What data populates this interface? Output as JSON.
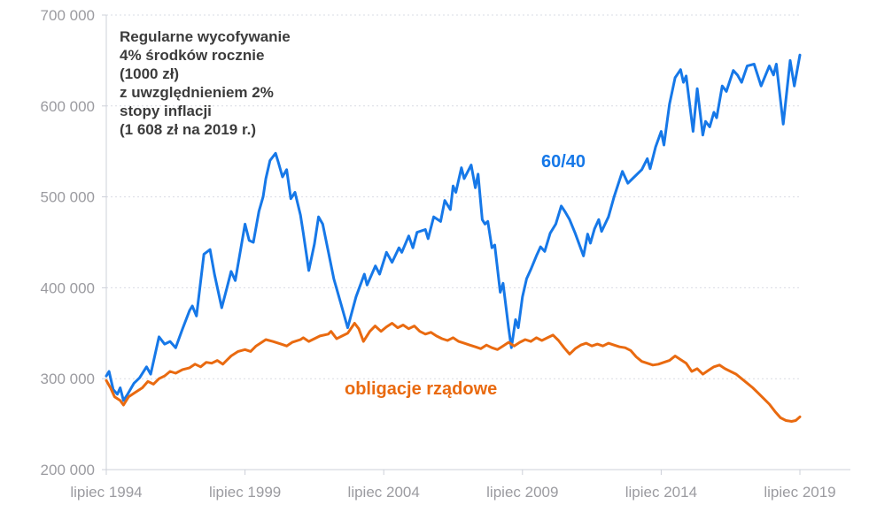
{
  "annotation": {
    "lines": [
      "Regularne wycofywanie",
      "4% środków rocznie",
      "(1000 zł)",
      "z uwzględnieniem 2%",
      "stopy inflacji",
      "(1 608 zł na 2019 r.)"
    ]
  },
  "series_labels": {
    "stocks_bonds": "60/40",
    "bonds": "obligacje rządowe"
  },
  "colors": {
    "blue": "#1678e8",
    "orange": "#e96a10",
    "grid": "#d9dce4",
    "axis": "#ccd0d8",
    "tick_text": "#9b9ba0",
    "annotation_text": "#3c3c3c",
    "background": "#ffffff"
  },
  "chart_data": {
    "type": "line",
    "title": "Regularne wycofywanie 4% środków rocznie (1000 zł) z uwzględnieniem 2% stopy inflacji (1 608 zł na 2019 r.)",
    "x_axis": {
      "unit": "years since July 1994",
      "xlim": [
        0,
        25
      ],
      "tick_positions": [
        0,
        5,
        10,
        15,
        20,
        25
      ],
      "tick_labels": [
        "lipiec 1994",
        "lipiec 1999",
        "lipiec 2004",
        "lipiec 2009",
        "lipiec 2014",
        "lipiec 2019"
      ]
    },
    "y_axis": {
      "unit": "zł",
      "ylim": [
        200000,
        700000
      ],
      "tick_values": [
        200000,
        300000,
        400000,
        500000,
        600000,
        700000
      ],
      "tick_labels": [
        "200 000",
        "300 000",
        "400 000",
        "500 000",
        "600 000",
        "700 000"
      ]
    },
    "grid": {
      "horizontal": true,
      "style": "dashed",
      "legend": "inline-labels"
    },
    "value_scale": 1000,
    "series": [
      {
        "name": "60/40",
        "color": "#1678e8",
        "points": [
          [
            0,
            303
          ],
          [
            0.1,
            308
          ],
          [
            0.25,
            288
          ],
          [
            0.4,
            283
          ],
          [
            0.5,
            290
          ],
          [
            0.62,
            276
          ],
          [
            0.75,
            282
          ],
          [
            1,
            295
          ],
          [
            1.2,
            301
          ],
          [
            1.45,
            313
          ],
          [
            1.6,
            305
          ],
          [
            1.9,
            346
          ],
          [
            2.1,
            338
          ],
          [
            2.3,
            341
          ],
          [
            2.5,
            334
          ],
          [
            2.75,
            355
          ],
          [
            3,
            375
          ],
          [
            3.1,
            380
          ],
          [
            3.25,
            369
          ],
          [
            3.52,
            437
          ],
          [
            3.74,
            442
          ],
          [
            3.9,
            415
          ],
          [
            4.16,
            378
          ],
          [
            4.35,
            400
          ],
          [
            4.5,
            418
          ],
          [
            4.65,
            408
          ],
          [
            5,
            470
          ],
          [
            5.15,
            452
          ],
          [
            5.3,
            450
          ],
          [
            5.5,
            484
          ],
          [
            5.65,
            500
          ],
          [
            5.75,
            520
          ],
          [
            5.9,
            540
          ],
          [
            6.1,
            548
          ],
          [
            6.2,
            538
          ],
          [
            6.35,
            522
          ],
          [
            6.5,
            530
          ],
          [
            6.65,
            498
          ],
          [
            6.8,
            505
          ],
          [
            7,
            480
          ],
          [
            7.1,
            460
          ],
          [
            7.3,
            419
          ],
          [
            7.5,
            448
          ],
          [
            7.65,
            478
          ],
          [
            7.8,
            470
          ],
          [
            8,
            440
          ],
          [
            8.2,
            410
          ],
          [
            8.45,
            383
          ],
          [
            8.7,
            356
          ],
          [
            9,
            390
          ],
          [
            9.3,
            415
          ],
          [
            9.4,
            403
          ],
          [
            9.7,
            424
          ],
          [
            9.85,
            415
          ],
          [
            10.1,
            439
          ],
          [
            10.3,
            428
          ],
          [
            10.55,
            444
          ],
          [
            10.65,
            439
          ],
          [
            10.9,
            457
          ],
          [
            11.05,
            444
          ],
          [
            11.2,
            461
          ],
          [
            11.5,
            464
          ],
          [
            11.6,
            454
          ],
          [
            11.8,
            478
          ],
          [
            12.05,
            473
          ],
          [
            12.2,
            496
          ],
          [
            12.4,
            486
          ],
          [
            12.5,
            512
          ],
          [
            12.6,
            505
          ],
          [
            12.8,
            532
          ],
          [
            12.9,
            520
          ],
          [
            13.05,
            529
          ],
          [
            13.15,
            535
          ],
          [
            13.3,
            510
          ],
          [
            13.4,
            525
          ],
          [
            13.55,
            475
          ],
          [
            13.65,
            470
          ],
          [
            13.75,
            473
          ],
          [
            13.9,
            444
          ],
          [
            14,
            447
          ],
          [
            14.2,
            395
          ],
          [
            14.3,
            405
          ],
          [
            14.5,
            356
          ],
          [
            14.6,
            334
          ],
          [
            14.75,
            365
          ],
          [
            14.85,
            356
          ],
          [
            15,
            390
          ],
          [
            15.15,
            410
          ],
          [
            15.3,
            420
          ],
          [
            15.5,
            435
          ],
          [
            15.65,
            445
          ],
          [
            15.8,
            440
          ],
          [
            16,
            460
          ],
          [
            16.2,
            470
          ],
          [
            16.4,
            490
          ],
          [
            16.55,
            483
          ],
          [
            16.7,
            475
          ],
          [
            16.9,
            460
          ],
          [
            17.2,
            435
          ],
          [
            17.35,
            459
          ],
          [
            17.45,
            449
          ],
          [
            17.6,
            465
          ],
          [
            17.75,
            475
          ],
          [
            17.85,
            462
          ],
          [
            18.1,
            478
          ],
          [
            18.3,
            500
          ],
          [
            18.6,
            528
          ],
          [
            18.8,
            515
          ],
          [
            19,
            521
          ],
          [
            19.3,
            530
          ],
          [
            19.5,
            542
          ],
          [
            19.6,
            531
          ],
          [
            19.8,
            555
          ],
          [
            20,
            572
          ],
          [
            20.1,
            557
          ],
          [
            20.3,
            602
          ],
          [
            20.5,
            631
          ],
          [
            20.7,
            640
          ],
          [
            20.8,
            626
          ],
          [
            20.9,
            633
          ],
          [
            21.15,
            572
          ],
          [
            21.3,
            619
          ],
          [
            21.5,
            568
          ],
          [
            21.6,
            583
          ],
          [
            21.75,
            577
          ],
          [
            21.9,
            593
          ],
          [
            22,
            587
          ],
          [
            22.2,
            622
          ],
          [
            22.35,
            616
          ],
          [
            22.6,
            639
          ],
          [
            22.75,
            634
          ],
          [
            22.9,
            626
          ],
          [
            23.1,
            644
          ],
          [
            23.35,
            646
          ],
          [
            23.6,
            622
          ],
          [
            23.9,
            644
          ],
          [
            24.05,
            634
          ],
          [
            24.15,
            646
          ],
          [
            24.4,
            580
          ],
          [
            24.65,
            650
          ],
          [
            24.8,
            622
          ],
          [
            25,
            656
          ]
        ]
      },
      {
        "name": "obligacje rządowe",
        "color": "#e96a10",
        "points": [
          [
            0,
            298
          ],
          [
            0.15,
            290
          ],
          [
            0.3,
            280
          ],
          [
            0.5,
            276
          ],
          [
            0.62,
            271
          ],
          [
            0.8,
            280
          ],
          [
            1,
            284
          ],
          [
            1.3,
            290
          ],
          [
            1.5,
            297
          ],
          [
            1.7,
            294
          ],
          [
            1.9,
            300
          ],
          [
            2.1,
            303
          ],
          [
            2.3,
            308
          ],
          [
            2.5,
            306
          ],
          [
            2.75,
            310
          ],
          [
            3,
            312
          ],
          [
            3.2,
            316
          ],
          [
            3.4,
            313
          ],
          [
            3.6,
            318
          ],
          [
            3.8,
            317
          ],
          [
            4,
            320
          ],
          [
            4.2,
            316
          ],
          [
            4.5,
            325
          ],
          [
            4.75,
            330
          ],
          [
            5,
            332
          ],
          [
            5.2,
            330
          ],
          [
            5.4,
            336
          ],
          [
            5.6,
            340
          ],
          [
            5.75,
            343
          ],
          [
            6,
            341
          ],
          [
            6.3,
            338
          ],
          [
            6.5,
            336
          ],
          [
            6.7,
            340
          ],
          [
            7,
            343
          ],
          [
            7.1,
            345
          ],
          [
            7.3,
            341
          ],
          [
            7.5,
            344
          ],
          [
            7.7,
            347
          ],
          [
            8,
            349
          ],
          [
            8.1,
            352
          ],
          [
            8.3,
            344
          ],
          [
            8.5,
            347
          ],
          [
            8.7,
            350
          ],
          [
            8.95,
            361
          ],
          [
            9.1,
            355
          ],
          [
            9.27,
            341
          ],
          [
            9.5,
            352
          ],
          [
            9.69,
            358
          ],
          [
            9.9,
            352
          ],
          [
            10.1,
            357
          ],
          [
            10.3,
            361
          ],
          [
            10.5,
            356
          ],
          [
            10.7,
            359
          ],
          [
            10.9,
            355
          ],
          [
            11.1,
            358
          ],
          [
            11.3,
            352
          ],
          [
            11.5,
            349
          ],
          [
            11.7,
            351
          ],
          [
            11.9,
            347
          ],
          [
            12.1,
            344
          ],
          [
            12.3,
            342
          ],
          [
            12.5,
            345
          ],
          [
            12.7,
            341
          ],
          [
            12.9,
            339
          ],
          [
            13.1,
            337
          ],
          [
            13.3,
            335
          ],
          [
            13.5,
            333
          ],
          [
            13.7,
            337
          ],
          [
            13.9,
            334
          ],
          [
            14.1,
            332
          ],
          [
            14.3,
            336
          ],
          [
            14.5,
            340
          ],
          [
            14.7,
            336
          ],
          [
            14.9,
            340
          ],
          [
            15.1,
            343
          ],
          [
            15.3,
            341
          ],
          [
            15.5,
            345
          ],
          [
            15.7,
            342
          ],
          [
            15.9,
            345
          ],
          [
            16.1,
            348
          ],
          [
            16.3,
            342
          ],
          [
            16.5,
            334
          ],
          [
            16.7,
            327
          ],
          [
            16.9,
            333
          ],
          [
            17.1,
            337
          ],
          [
            17.3,
            339
          ],
          [
            17.5,
            336
          ],
          [
            17.7,
            338
          ],
          [
            17.9,
            336
          ],
          [
            18.1,
            339
          ],
          [
            18.3,
            337
          ],
          [
            18.5,
            335
          ],
          [
            18.7,
            334
          ],
          [
            18.9,
            331
          ],
          [
            19.1,
            324
          ],
          [
            19.3,
            319
          ],
          [
            19.5,
            317
          ],
          [
            19.7,
            315
          ],
          [
            19.9,
            316
          ],
          [
            20.1,
            318
          ],
          [
            20.3,
            320
          ],
          [
            20.5,
            325
          ],
          [
            20.7,
            321
          ],
          [
            20.9,
            317
          ],
          [
            21.1,
            308
          ],
          [
            21.3,
            311
          ],
          [
            21.5,
            305
          ],
          [
            21.7,
            309
          ],
          [
            21.9,
            313
          ],
          [
            22.1,
            315
          ],
          [
            22.3,
            311
          ],
          [
            22.5,
            308
          ],
          [
            22.7,
            305
          ],
          [
            22.9,
            300
          ],
          [
            23.1,
            295
          ],
          [
            23.3,
            290
          ],
          [
            23.5,
            284
          ],
          [
            23.7,
            278
          ],
          [
            23.9,
            272
          ],
          [
            24.1,
            264
          ],
          [
            24.3,
            257
          ],
          [
            24.5,
            254
          ],
          [
            24.7,
            253
          ],
          [
            24.85,
            254
          ],
          [
            25,
            258
          ]
        ]
      }
    ]
  }
}
